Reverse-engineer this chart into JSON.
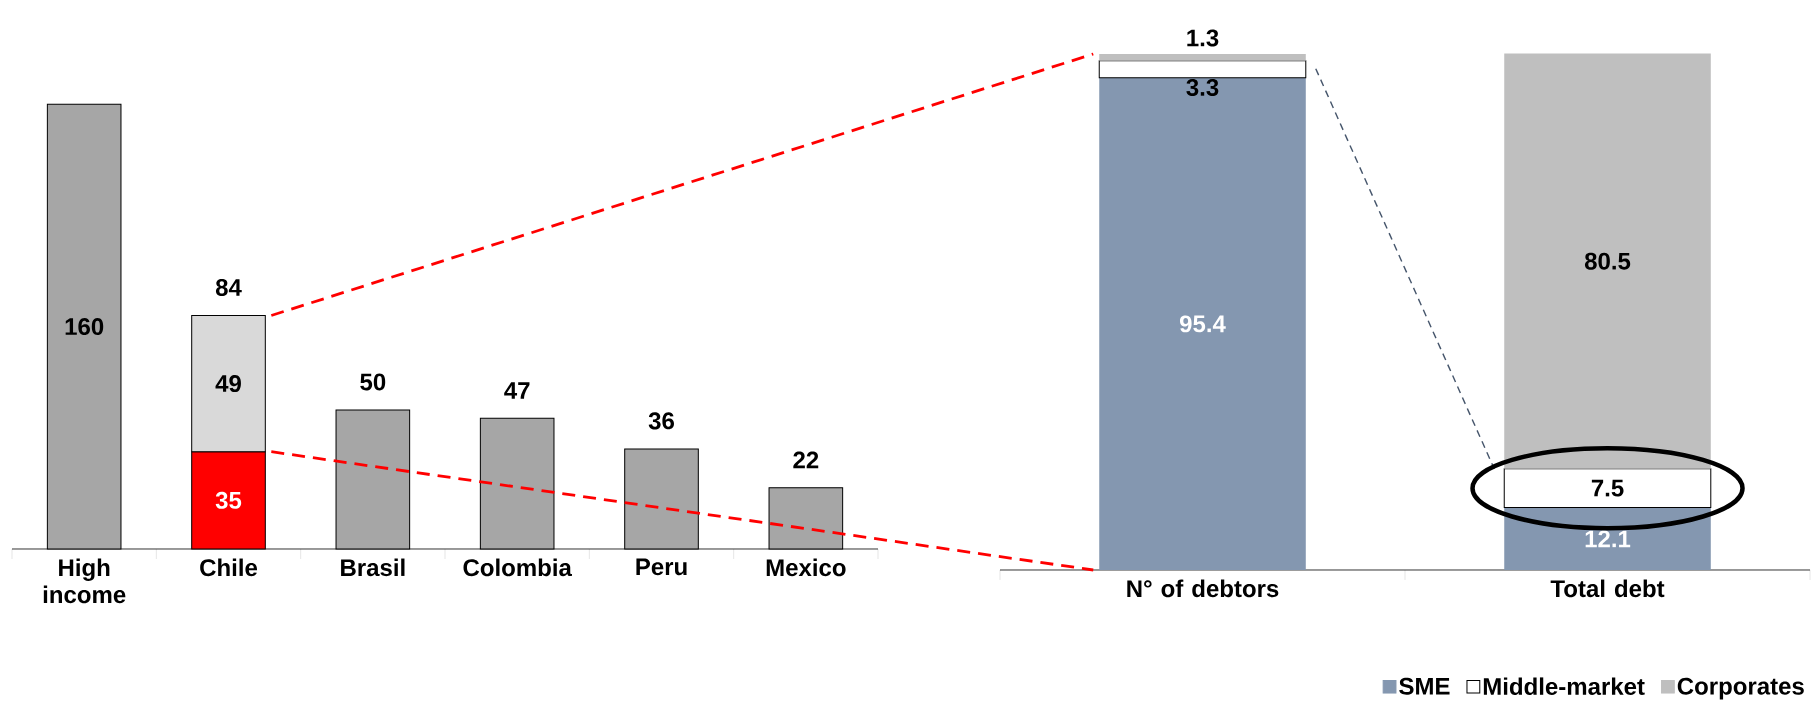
{
  "chart_data": [
    {
      "type": "bar",
      "stacked": true,
      "categories": [
        "High income",
        "Chile",
        "Brasil",
        "Colombia",
        "Peru",
        "Mexico"
      ],
      "series": [
        {
          "values": [
            160,
            35,
            50,
            47,
            36,
            22
          ],
          "colors": [
            "#a6a6a6",
            "#ff0000",
            "#a6a6a6",
            "#a6a6a6",
            "#a6a6a6",
            "#a6a6a6"
          ]
        },
        {
          "values": [
            null,
            49,
            null,
            null,
            null,
            null
          ],
          "color": "#d9d9d9"
        }
      ],
      "totals": [
        null,
        "84",
        null,
        null,
        null,
        null
      ],
      "data_labels": true,
      "tick_labels": "x"
    },
    {
      "type": "bar",
      "stacked": true,
      "categories": [
        "N° of debtors",
        "Total debt"
      ],
      "series": [
        {
          "name": "SME",
          "color": "#8497b0",
          "values": [
            95.4,
            12.1
          ]
        },
        {
          "name": "Middle-market",
          "color": "#ffffff",
          "values": [
            3.3,
            7.5
          ]
        },
        {
          "name": "Corporates",
          "color": "#bfbfbf",
          "values": [
            1.3,
            80.5
          ]
        }
      ],
      "data_labels": true,
      "ylim": [
        0,
        100
      ],
      "tick_labels": "x",
      "legend": "bottom right"
    }
  ]
}
